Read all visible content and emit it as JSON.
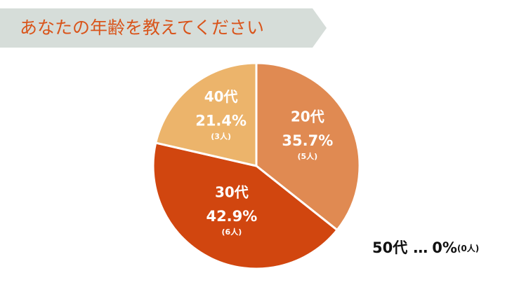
{
  "chart_data": {
    "type": "pie",
    "title": "あなたの年齢を教えてください",
    "categories": [
      "20代",
      "30代",
      "40代",
      "50代"
    ],
    "values": [
      35.7,
      42.9,
      21.4,
      0
    ],
    "value_labels": [
      "35.7%",
      "42.9%",
      "21.4%",
      "0%"
    ],
    "count_labels": [
      "(5人)",
      "(6人)",
      "(3人)",
      "(0人)"
    ],
    "colors": [
      "#e08a52",
      "#d1460f",
      "#ecb46b",
      "#cccccc"
    ],
    "zero_marker": "…"
  }
}
